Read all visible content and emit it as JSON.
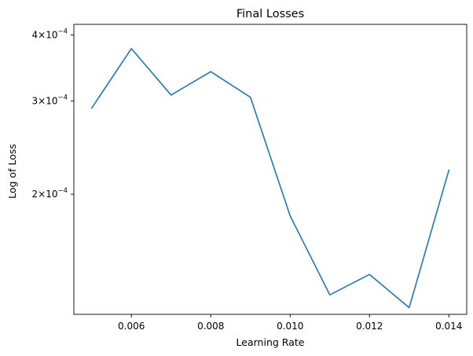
{
  "chart_data": {
    "type": "line",
    "title": "Final Losses",
    "xlabel": "Learning Rate",
    "ylabel": "Log of Loss",
    "yscale": "log",
    "xlim": [
      0.00455,
      0.01445
    ],
    "ylim": [
      0.0001185,
      0.000419
    ],
    "grid": false,
    "line_color": "#1f77b4",
    "x_ticks": [
      {
        "value": 0.006,
        "label": "0.006"
      },
      {
        "value": 0.008,
        "label": "0.008"
      },
      {
        "value": 0.01,
        "label": "0.010"
      },
      {
        "value": 0.012,
        "label": "0.012"
      },
      {
        "value": 0.014,
        "label": "0.014"
      }
    ],
    "y_ticks": [
      {
        "value": 0.0004,
        "mantissa": "4",
        "exponent": "−4"
      },
      {
        "value": 0.0003,
        "mantissa": "3",
        "exponent": "−4"
      },
      {
        "value": 0.0002,
        "mantissa": "2",
        "exponent": "−4"
      }
    ],
    "series": [
      {
        "x": [
          0.005,
          0.006,
          0.007,
          0.008,
          0.009,
          0.01,
          0.011,
          0.012,
          0.013,
          0.014
        ],
        "y": [
          0.000291,
          0.000377,
          0.000308,
          0.000341,
          0.000305,
          0.000182,
          0.000129,
          0.000141,
          0.000122,
          0.000222
        ]
      }
    ]
  }
}
